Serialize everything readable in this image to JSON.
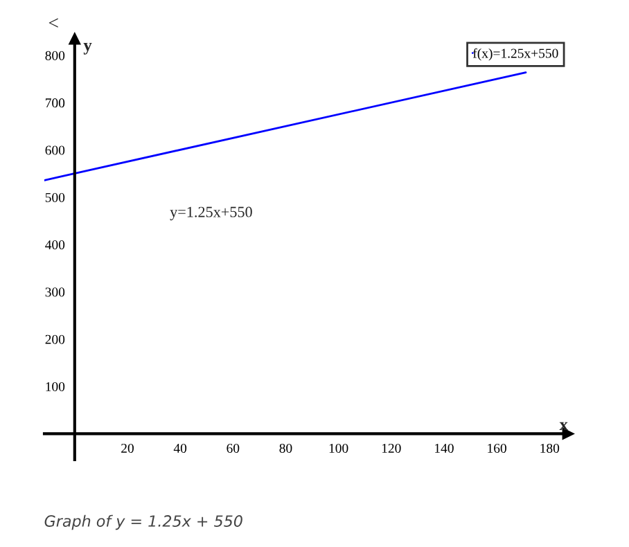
{
  "chart_data": {
    "type": "line",
    "xlabel": "x",
    "ylabel": "y",
    "x": [
      -11.5,
      171
    ],
    "series": [
      {
        "name": "f(x)=1.25x+550",
        "color": "#0000ff",
        "values": [
          536,
          764
        ]
      }
    ],
    "xlim": [
      -11.5,
      187
    ],
    "ylim": [
      -55,
      835
    ],
    "xticks": [
      20,
      40,
      60,
      80,
      100,
      120,
      140,
      160,
      180
    ],
    "yticks": [
      100,
      200,
      300,
      400,
      500,
      600,
      700,
      800
    ],
    "legend": "top right",
    "grid": false,
    "annotations": [
      "<",
      "y=1.25x+550",
      "Graph of y = 1.25x + 550"
    ]
  }
}
